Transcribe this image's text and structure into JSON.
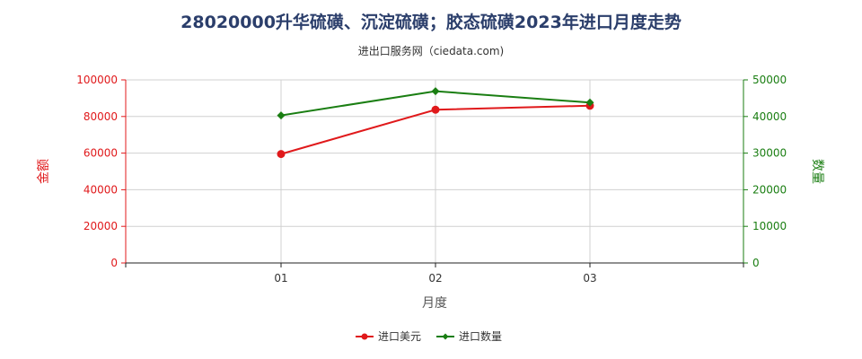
{
  "header": {
    "title": "28020000升华硫磺、沉淀硫磺；胶态硫磺2023年进口月度走势",
    "subtitle": "进出口服务网（ciedata.com)"
  },
  "colors": {
    "amount": "#e0191b",
    "quantity": "#1a7e12",
    "grid": "#d0d0d0"
  },
  "chart_data": {
    "type": "line",
    "categories": [
      "01",
      "02",
      "03"
    ],
    "xlabel": "月度",
    "ylabel_left": "金额",
    "ylabel_right": "数量",
    "ylim_left": [
      0,
      100000
    ],
    "ylim_right": [
      0,
      50000
    ],
    "yticks_left": [
      0,
      20000,
      40000,
      60000,
      80000,
      100000
    ],
    "yticks_right": [
      0,
      10000,
      20000,
      30000,
      40000,
      50000
    ],
    "grid": true,
    "legend_position": "bottom",
    "series": [
      {
        "name": "进口美元",
        "axis": "left",
        "values": [
          59500,
          83700,
          85900
        ]
      },
      {
        "name": "进口数量",
        "axis": "right",
        "values": [
          40300,
          46900,
          43800
        ]
      }
    ]
  }
}
